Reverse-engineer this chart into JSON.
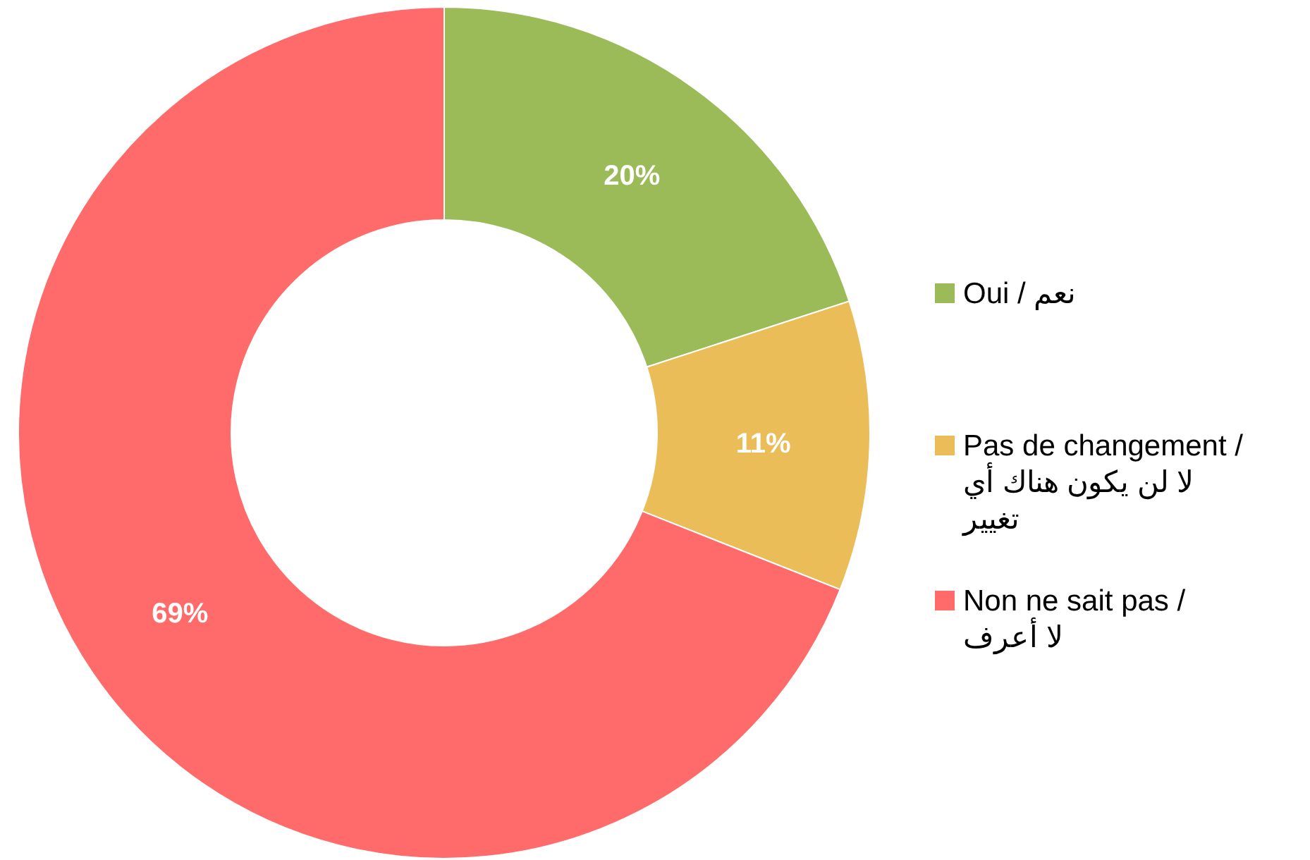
{
  "chart_data": {
    "type": "donut",
    "categories": [
      "Oui / نعم",
      "Pas de changement / لا لن يكون هناك أي تغيير",
      "Non ne sait pas / لا أعرف"
    ],
    "values": [
      20,
      11,
      69
    ],
    "colors": [
      "#9bbb59",
      "#ebbd59",
      "#ff6b6b"
    ],
    "value_labels": [
      "20%",
      "11%",
      "69%"
    ],
    "legend": "right"
  }
}
